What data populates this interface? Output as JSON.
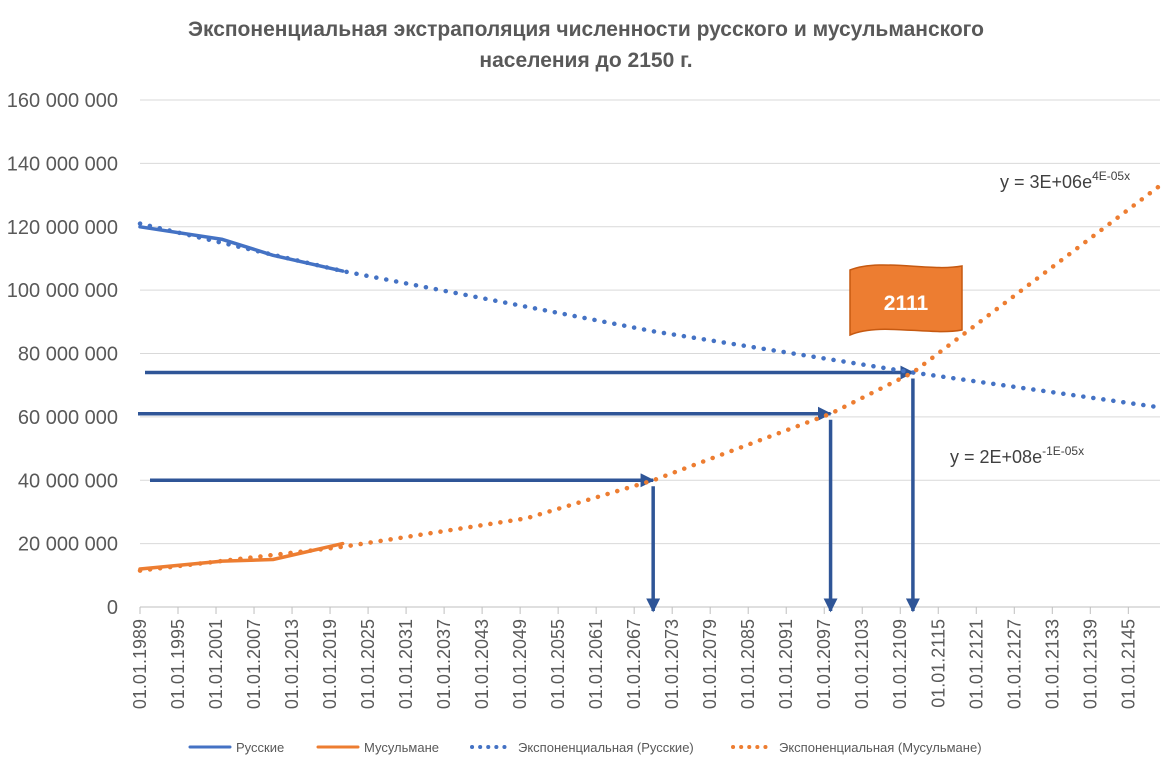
{
  "chart_data": {
    "type": "line",
    "title_line1": "Экспоненциальная экстраполяция численности русского и мусульманского",
    "title_line2": "населения до 2150 г.",
    "ylim": [
      0,
      160000000
    ],
    "y_ticks": [
      "0",
      "20 000 000",
      "40 000 000",
      "60 000 000",
      "80 000 000",
      "100 000 000",
      "120 000 000",
      "140 000 000",
      "160 000 000"
    ],
    "y_tick_values": [
      0,
      20000000,
      40000000,
      60000000,
      80000000,
      100000000,
      120000000,
      140000000,
      160000000
    ],
    "xlim": [
      "01.01.1989",
      "01.01.2150"
    ],
    "x_ticks": [
      "01.01.1989",
      "01.01.1995",
      "01.01.2001",
      "01.01.2007",
      "01.01.2013",
      "01.01.2019",
      "01.01.2025",
      "01.01.2031",
      "01.01.2037",
      "01.01.2043",
      "01.01.2049",
      "01.01.2055",
      "01.01.2061",
      "01.01.2067",
      "01.01.2073",
      "01.01.2079",
      "01.01.2085",
      "01.01.2091",
      "01.01.2097",
      "01.01.2103",
      "01.01.2109",
      "01.01.2115",
      "01.01.2121",
      "01.01.2127",
      "01.01.2133",
      "01.01.2139",
      "01.01.2145"
    ],
    "grid": true,
    "legend_position": "bottom",
    "series": [
      {
        "name": "Русские",
        "kind": "actual",
        "color": "#4472C4",
        "x": [
          "1989-01-01",
          "2002-01-01",
          "2010-01-01",
          "2021-01-01"
        ],
        "values": [
          120000000,
          116000000,
          111000000,
          106000000
        ]
      },
      {
        "name": "Мусульмане",
        "kind": "actual",
        "color": "#ED7D31",
        "x": [
          "1989-01-01",
          "2002-01-01",
          "2010-01-01",
          "2021-01-01"
        ],
        "values": [
          12000000,
          14500000,
          15000000,
          20000000
        ]
      },
      {
        "name": "Экспоненциальная (Русские)",
        "kind": "trend",
        "color": "#4472C4",
        "x": [
          "1989-01-01",
          "2021-01-01",
          "2070-01-01",
          "2111-01-01",
          "2150-01-01"
        ],
        "values": [
          121000000,
          106000000,
          87000000,
          74000000,
          63000000
        ]
      },
      {
        "name": "Экспоненциальная (Мусульмане)",
        "kind": "trend",
        "color": "#ED7D31",
        "x": [
          "1989-01-01",
          "2021-01-01",
          "2050-01-01",
          "2070-01-01",
          "2098-01-01",
          "2111-01-01",
          "2150-01-01"
        ],
        "values": [
          11500000,
          19000000,
          28000000,
          40000000,
          61000000,
          74000000,
          133000000
        ]
      }
    ],
    "annotations": {
      "equation_muslim": {
        "base": "y = 3E+06e",
        "sup": "4E-05x"
      },
      "equation_russian": {
        "base": "y = 2E+08e",
        "sup": "-1E-05x"
      },
      "flag_label": "2111",
      "flag_color": "#ED7D31",
      "arrow_color": "#2F5597",
      "marker_arrows": [
        {
          "x": "2070-01-01",
          "value": 40000000
        },
        {
          "x": "2098-01-01",
          "value": 61000000
        },
        {
          "x": "2111-01-01",
          "value": 74000000
        }
      ]
    }
  }
}
